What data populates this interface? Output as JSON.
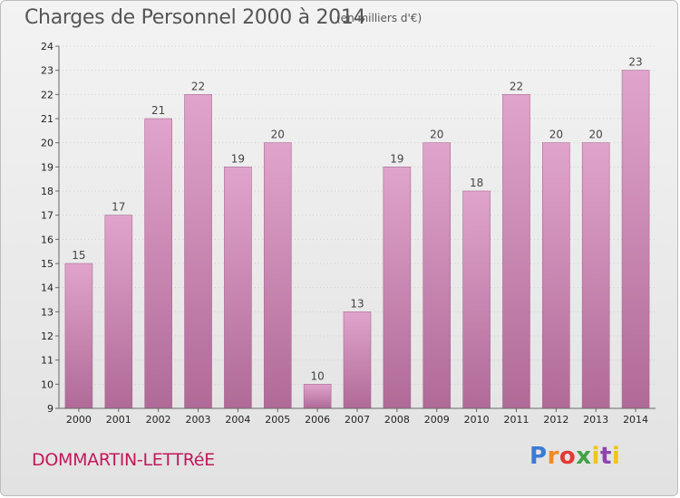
{
  "header": {
    "title": "Charges de Personnel 2000 à 2014",
    "subtitle": "(en milliers d'€)"
  },
  "footer": {
    "commune": "DOMMARTIN-LETTRéE",
    "logo_text": "Proxiti"
  },
  "chart_data": {
    "type": "bar",
    "title": "Charges de Personnel 2000 à 2014",
    "subtitle": "(en milliers d'€)",
    "categories": [
      "2000",
      "2001",
      "2002",
      "2003",
      "2004",
      "2005",
      "2006",
      "2007",
      "2008",
      "2009",
      "2010",
      "2011",
      "2012",
      "2013",
      "2014"
    ],
    "values": [
      15,
      17,
      21,
      22,
      19,
      20,
      10,
      13,
      19,
      20,
      18,
      22,
      20,
      20,
      23
    ],
    "ylim": [
      9,
      24
    ],
    "yticks": [
      9,
      10,
      11,
      12,
      13,
      14,
      15,
      16,
      17,
      18,
      19,
      20,
      21,
      22,
      23,
      24
    ],
    "grid": true,
    "bar_color_top": "#e0a4cc",
    "bar_color_bottom": "#b06a97"
  }
}
